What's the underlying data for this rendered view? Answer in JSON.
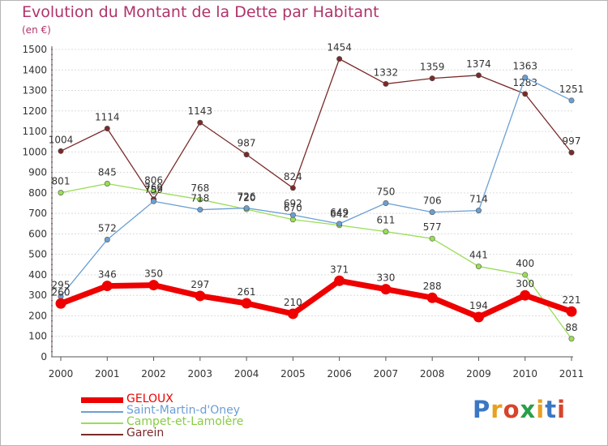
{
  "header": {
    "title": "Evolution du Montant de la Dette par Habitant",
    "subtitle": "(en €)"
  },
  "logo": {
    "text": "Proxiti",
    "letters": [
      "P",
      "r",
      "o",
      "x",
      "i",
      "t",
      "i"
    ],
    "colors": [
      "#3a78c4",
      "#e8a020",
      "#d7442b",
      "#2a9f4a",
      "#e8a020",
      "#3a78c4",
      "#d7442b"
    ]
  },
  "chart_data": {
    "type": "line",
    "x": [
      "2000",
      "2001",
      "2002",
      "2003",
      "2004",
      "2005",
      "2006",
      "2007",
      "2008",
      "2009",
      "2010",
      "2011"
    ],
    "ylim": [
      0,
      1500
    ],
    "yticks": [
      "0",
      "100",
      "200",
      "300",
      "400",
      "500",
      "600",
      "700",
      "800",
      "900",
      "1000",
      "1100",
      "1200",
      "1300",
      "1400",
      "1500"
    ],
    "grid": "horizontal",
    "legend_position": "bottom-left",
    "series": [
      {
        "name": "GELOUX",
        "color": "#ee0000",
        "values": [
          260,
          346,
          350,
          297,
          261,
          210,
          371,
          330,
          288,
          194,
          300,
          221
        ],
        "labels": [
          "260",
          "346",
          "350",
          "297",
          "261",
          "210",
          "371",
          "330",
          "288",
          "194",
          "300",
          "221"
        ]
      },
      {
        "name": "Saint-Martin-d'Oney",
        "color": "#6a9fd4",
        "values": [
          295,
          572,
          759,
          718,
          726,
          692,
          649,
          750,
          706,
          714,
          1363,
          1251
        ],
        "labels": [
          "295",
          "572",
          "759",
          "718",
          "726",
          "692",
          "649",
          "750",
          "706",
          "714",
          "1363",
          "1251"
        ]
      },
      {
        "name": "Campet-et-Lamolère",
        "color": "#99dd55",
        "values": [
          801,
          845,
          806,
          768,
          720,
          670,
          642,
          611,
          577,
          441,
          400,
          88
        ],
        "labels": [
          "801",
          "845",
          "806",
          "768",
          "720",
          "670",
          "642",
          "611",
          "577",
          "441",
          "400",
          "88"
        ]
      },
      {
        "name": "Garein",
        "color": "#7a2a2a",
        "values": [
          1004,
          1114,
          769,
          1143,
          987,
          824,
          1454,
          1332,
          1359,
          1374,
          1283,
          997
        ],
        "labels": [
          "1004",
          "1114",
          "769",
          "1143",
          "987",
          "824",
          "1454",
          "1332",
          "1359",
          "1374",
          "1283",
          "997"
        ]
      }
    ]
  }
}
